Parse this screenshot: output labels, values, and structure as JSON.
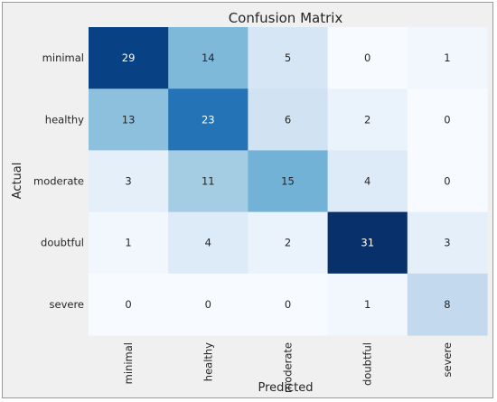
{
  "chart_data": {
    "type": "heatmap",
    "title": "Confusion Matrix",
    "xlabel": "Predicted",
    "ylabel": "Actual",
    "x_categories": [
      "minimal",
      "healthy",
      "moderate",
      "doubtful",
      "severe"
    ],
    "y_categories": [
      "minimal",
      "healthy",
      "moderate",
      "doubtful",
      "severe"
    ],
    "values": [
      [
        29,
        14,
        5,
        0,
        1
      ],
      [
        13,
        23,
        6,
        2,
        0
      ],
      [
        3,
        11,
        15,
        4,
        0
      ],
      [
        1,
        4,
        2,
        31,
        3
      ],
      [
        0,
        0,
        0,
        1,
        8
      ]
    ],
    "value_range": [
      0,
      31
    ],
    "colormap": "Blues",
    "colors": {
      "low": "#f7fbff",
      "mid_low": "#c6dbef",
      "mid": "#6baed6",
      "mid_high": "#2171b5",
      "high": "#08306b",
      "text_dark": "#262626",
      "text_light": "#ffffff"
    },
    "grid": false
  }
}
